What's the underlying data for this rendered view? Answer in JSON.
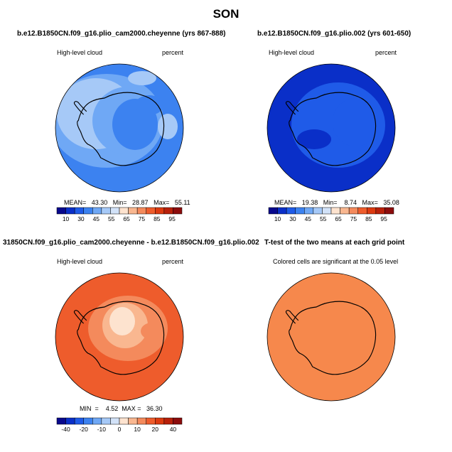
{
  "page": {
    "title": "SON"
  },
  "panels": [
    {
      "title": "b.e12.B1850CN.f09_g16.plio_cam2000.cheyenne (yrs 867-888)",
      "left_label": "High-level cloud",
      "right_label": "percent",
      "stats": "MEAN=   43.30   Min=   28.87   Max=   55.11",
      "colorbar_labels": [
        "10",
        "30",
        "45",
        "55",
        "65",
        "75",
        "85",
        "95"
      ]
    },
    {
      "title": "b.e12.B1850CN.f09_g16.plio.002 (yrs 601-650)",
      "left_label": "High-level cloud",
      "right_label": "percent",
      "stats": "MEAN=   19.38   Min=    8.74   Max=   35.08",
      "colorbar_labels": [
        "10",
        "30",
        "45",
        "55",
        "65",
        "75",
        "85",
        "95"
      ]
    },
    {
      "title": "31850CN.f09_g16.plio_cam2000.cheyenne - b.e12.B1850CN.f09_g16.plio.002",
      "left_label": "High-level cloud",
      "right_label": "percent",
      "stats": "MIN  =    4.52  MAX =   36.30",
      "colorbar_labels": [
        "-40",
        "-20",
        "-10",
        "0",
        "10",
        "20",
        "40"
      ]
    },
    {
      "title": "T-test of the two means at each grid point",
      "center_label": "Colored cells are significant at the 0.05 level"
    }
  ],
  "chart_data": [
    {
      "type": "heatmap",
      "title": "b.e12.B1850CN.f09_g16.plio_cam2000.cheyenne (yrs 867-888)",
      "variable": "High-level cloud",
      "units": "percent",
      "mean": 43.3,
      "min": 28.87,
      "max": 55.11,
      "levels": [
        10,
        30,
        45,
        55,
        65,
        75,
        85,
        95
      ],
      "projection": "south polar stereographic"
    },
    {
      "type": "heatmap",
      "title": "b.e12.B1850CN.f09_g16.plio.002 (yrs 601-650)",
      "variable": "High-level cloud",
      "units": "percent",
      "mean": 19.38,
      "min": 8.74,
      "max": 35.08,
      "levels": [
        10,
        30,
        45,
        55,
        65,
        75,
        85,
        95
      ],
      "projection": "south polar stereographic"
    },
    {
      "type": "heatmap",
      "title": "31850CN.f09_g16.plio_cam2000.cheyenne - b.e12.B1850CN.f09_g16.plio.002",
      "variable": "High-level cloud",
      "units": "percent",
      "min": 4.52,
      "max": 36.3,
      "levels": [
        -40,
        -20,
        -10,
        0,
        10,
        20,
        40
      ],
      "projection": "south polar stereographic"
    },
    {
      "type": "heatmap",
      "title": "T-test of the two means at each grid point",
      "annotation": "Colored cells are significant at the 0.05 level",
      "projection": "south polar stereographic"
    }
  ],
  "colors": {
    "abs_scale": [
      "#08088c",
      "#0a2fc8",
      "#1f5be8",
      "#3c82f0",
      "#6fa8f5",
      "#a6c9f7",
      "#d2e2f8",
      "#fde3cf",
      "#f9b790",
      "#f48a5c",
      "#ee5c2c",
      "#dc3a10",
      "#b8200a",
      "#8c0c0c"
    ],
    "diff_scale": [
      "#08088c",
      "#0a2fc8",
      "#1f5be8",
      "#3c82f0",
      "#6fa8f5",
      "#a6c9f7",
      "#d2e2f8",
      "#fde3cf",
      "#f9b790",
      "#f48a5c",
      "#ee5c2c",
      "#dc3a10",
      "#b8200a",
      "#8c0c0c"
    ],
    "ttest_fill": "#f6884c"
  }
}
